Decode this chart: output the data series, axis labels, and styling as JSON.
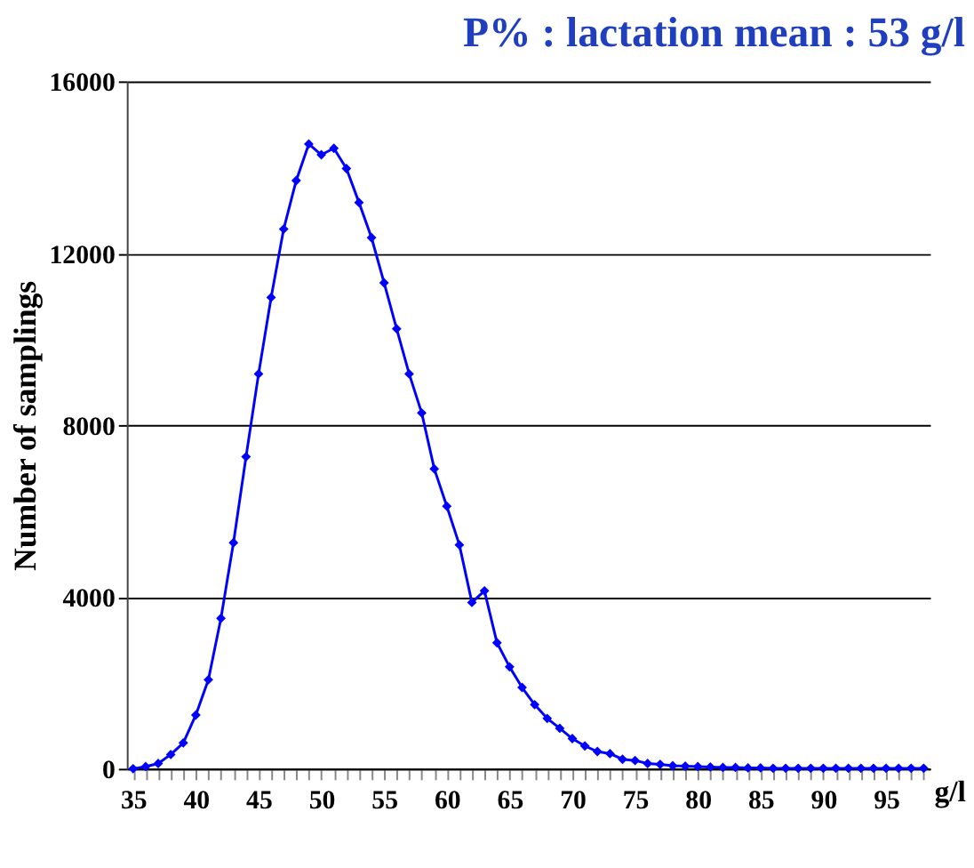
{
  "chart_data": {
    "type": "line",
    "title": "P% : lactation mean : 53 g/l",
    "ylabel": "Number of samplings",
    "xlabel": "g/l",
    "categories": [
      "35",
      null,
      null,
      null,
      null,
      "40",
      null,
      null,
      null,
      null,
      "45",
      null,
      null,
      null,
      null,
      "50",
      null,
      null,
      null,
      null,
      "55",
      null,
      null,
      null,
      null,
      "60",
      null,
      null,
      null,
      null,
      "65",
      null,
      null,
      null,
      null,
      "70",
      null,
      null,
      null,
      null,
      "75",
      null,
      null,
      null,
      null,
      "80",
      null,
      null,
      null,
      null,
      "85",
      null,
      null,
      null,
      null,
      "90",
      null,
      null,
      null,
      null,
      "95",
      null,
      null,
      null
    ],
    "series": [
      {
        "color": "#0000ff",
        "values": [
          0,
          50,
          120,
          330,
          600,
          1250,
          2070,
          3500,
          5260,
          7260,
          9190,
          10970,
          12560,
          13690,
          14540,
          14290,
          14440,
          13970,
          13180,
          12360,
          11310,
          10240,
          9190,
          8280,
          6980,
          6110,
          5210,
          3870,
          4140,
          2930,
          2370,
          1890,
          1490,
          1170,
          940,
          700,
          530,
          400,
          350,
          220,
          190,
          120,
          100,
          70,
          60,
          50,
          40,
          30,
          30,
          20,
          20,
          10,
          10,
          10,
          10,
          10,
          10,
          10,
          10,
          10,
          10,
          10,
          10,
          10
        ]
      }
    ],
    "ylim": [
      0,
      16000
    ],
    "yticks": [
      0,
      4000,
      8000,
      12000,
      16000
    ],
    "grid": "y",
    "marker": "diamond",
    "line_style": "solid"
  }
}
